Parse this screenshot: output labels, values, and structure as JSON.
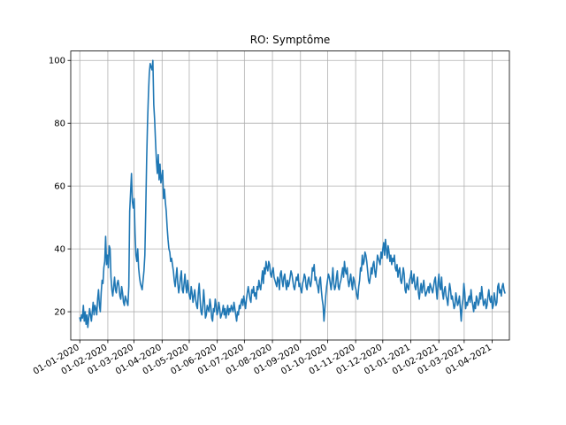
{
  "chart_data": {
    "type": "line",
    "title": "RO: Symptôme",
    "xlabel": "",
    "ylabel": "",
    "grid": true,
    "legend": "none",
    "x_start": "2020-01-01",
    "x_end": "2021-04-15",
    "xlim": [
      "2019-12-22",
      "2021-04-20"
    ],
    "ylim": [
      11,
      103
    ],
    "y_ticks": [
      20,
      40,
      60,
      80,
      100
    ],
    "x_ticks": [
      {
        "date": "2020-01-01",
        "label": "01-01-2020"
      },
      {
        "date": "2020-02-01",
        "label": "01-02-2020"
      },
      {
        "date": "2020-03-01",
        "label": "01-03-2020"
      },
      {
        "date": "2020-04-01",
        "label": "01-04-2020"
      },
      {
        "date": "2020-05-01",
        "label": "01-05-2020"
      },
      {
        "date": "2020-06-01",
        "label": "01-06-2020"
      },
      {
        "date": "2020-07-01",
        "label": "01-07-2020"
      },
      {
        "date": "2020-08-01",
        "label": "01-08-2020"
      },
      {
        "date": "2020-09-01",
        "label": "01-09-2020"
      },
      {
        "date": "2020-10-01",
        "label": "01-10-2020"
      },
      {
        "date": "2020-11-01",
        "label": "01-11-2020"
      },
      {
        "date": "2020-12-01",
        "label": "01-12-2020"
      },
      {
        "date": "2021-01-01",
        "label": "01-01-2021"
      },
      {
        "date": "2021-02-01",
        "label": "01-02-2021"
      },
      {
        "date": "2021-03-01",
        "label": "01-03-2021"
      },
      {
        "date": "2021-04-01",
        "label": "01-04-2021"
      }
    ],
    "series": [
      {
        "color": "#1f77b4",
        "values": [
          18,
          17,
          19,
          18,
          22,
          17,
          20,
          16,
          19,
          15,
          18,
          21,
          19,
          17,
          20,
          23,
          19,
          22,
          21,
          19,
          24,
          27,
          22,
          20,
          26,
          30,
          29,
          34,
          36,
          44,
          35,
          38,
          34,
          41,
          40,
          31,
          27,
          25,
          28,
          31,
          27,
          26,
          29,
          30,
          28,
          25,
          24,
          28,
          26,
          23,
          22,
          25,
          24,
          23,
          22,
          28,
          52,
          58,
          64,
          55,
          53,
          56,
          45,
          38,
          36,
          40,
          34,
          31,
          29,
          28,
          27,
          30,
          33,
          38,
          52,
          68,
          80,
          89,
          96,
          99,
          98,
          97,
          100,
          86,
          81,
          74,
          68,
          64,
          70,
          62,
          67,
          61,
          63,
          65,
          56,
          59,
          55,
          52,
          47,
          43,
          40,
          39,
          36,
          37,
          35,
          33,
          30,
          28,
          31,
          34,
          29,
          26,
          28,
          31,
          33,
          27,
          26,
          29,
          32,
          28,
          26,
          30,
          27,
          25,
          24,
          28,
          26,
          23,
          25,
          27,
          24,
          22,
          21,
          26,
          29,
          24,
          20,
          19,
          22,
          27,
          23,
          18,
          19,
          22,
          21,
          20,
          24,
          22,
          18,
          17,
          21,
          20,
          24,
          22,
          19,
          20,
          23,
          21,
          18,
          19,
          20,
          22,
          19,
          21,
          18,
          20,
          22,
          19,
          21,
          20,
          22,
          21,
          20,
          23,
          21,
          19,
          17,
          20,
          19,
          22,
          21,
          23,
          24,
          22,
          25,
          23,
          21,
          24,
          26,
          28,
          26,
          24,
          23,
          27,
          26,
          28,
          25,
          26,
          24,
          28,
          27,
          30,
          28,
          27,
          30,
          33,
          29,
          34,
          32,
          36,
          34,
          33,
          36,
          35,
          32,
          31,
          33,
          34,
          31,
          30,
          29,
          28,
          31,
          30,
          27,
          32,
          33,
          30,
          28,
          31,
          32,
          29,
          27,
          30,
          28,
          29,
          31,
          33,
          32,
          30,
          28,
          27,
          29,
          31,
          30,
          32,
          28,
          29,
          27,
          26,
          29,
          30,
          32,
          31,
          28,
          27,
          30,
          31,
          29,
          28,
          30,
          34,
          33,
          35,
          30,
          31,
          29,
          28,
          26,
          30,
          31,
          27,
          24,
          22,
          17,
          21,
          25,
          28,
          30,
          32,
          31,
          29,
          27,
          30,
          34,
          29,
          27,
          28,
          31,
          33,
          28,
          27,
          29,
          30,
          32,
          34,
          31,
          36,
          33,
          32,
          34,
          30,
          28,
          30,
          32,
          29,
          27,
          31,
          30,
          28,
          27,
          25,
          24,
          28,
          30,
          34,
          33,
          38,
          35,
          36,
          39,
          38,
          36,
          33,
          30,
          29,
          31,
          34,
          32,
          35,
          36,
          33,
          31,
          34,
          38,
          37,
          36,
          35,
          39,
          37,
          40,
          42,
          38,
          43,
          40,
          37,
          41,
          39,
          36,
          38,
          35,
          37,
          36,
          38,
          34,
          33,
          35,
          31,
          33,
          34,
          30,
          29,
          31,
          34,
          32,
          27,
          26,
          29,
          28,
          27,
          30,
          31,
          33,
          29,
          30,
          32,
          28,
          27,
          29,
          31,
          26,
          24,
          27,
          29,
          26,
          28,
          30,
          27,
          25,
          26,
          27,
          28,
          26,
          29,
          28,
          27,
          26,
          28,
          30,
          31,
          27,
          24,
          29,
          32,
          28,
          27,
          31,
          26,
          24,
          27,
          28,
          25,
          24,
          22,
          26,
          29,
          27,
          24,
          25,
          23,
          21,
          22,
          26,
          24,
          22,
          23,
          25,
          21,
          17,
          22,
          24,
          29,
          26,
          21,
          23,
          22,
          24,
          25,
          23,
          27,
          24,
          22,
          20,
          23,
          21,
          25,
          24,
          22,
          23,
          26,
          24,
          28,
          25,
          22,
          23,
          24,
          21,
          22,
          25,
          27,
          24,
          23,
          25,
          21,
          22,
          26,
          24,
          22,
          23,
          28,
          29,
          26,
          27,
          25,
          28,
          29,
          27,
          26
        ]
      }
    ]
  }
}
